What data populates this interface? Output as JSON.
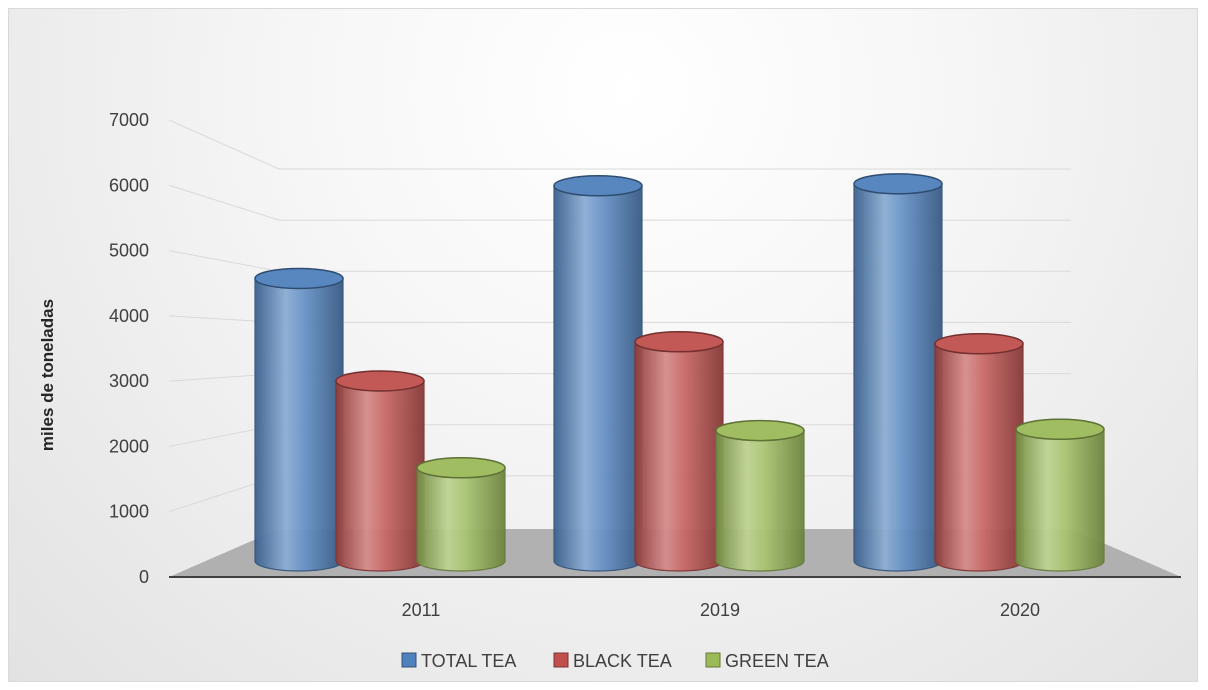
{
  "chart_data": {
    "type": "bar",
    "style": "3d-cylinder",
    "title": "",
    "xlabel": "",
    "ylabel": "miles de toneladas",
    "categories": [
      "2011",
      "2019",
      "2020"
    ],
    "series": [
      {
        "name": "TOTAL TEA",
        "values": [
          4450,
          5870,
          5900
        ],
        "color": "#4f81bd"
      },
      {
        "name": "BLACK TEA",
        "values": [
          2880,
          3480,
          3450
        ],
        "color": "#c0504d"
      },
      {
        "name": "GREEN TEA",
        "values": [
          1550,
          2120,
          2140
        ],
        "color": "#9bbb59"
      }
    ],
    "yticks": [
      "0",
      "1000",
      "2000",
      "3000",
      "4000",
      "5000",
      "6000",
      "7000"
    ],
    "ylim": [
      0,
      7000
    ],
    "grid": true,
    "legend_position": "bottom"
  }
}
